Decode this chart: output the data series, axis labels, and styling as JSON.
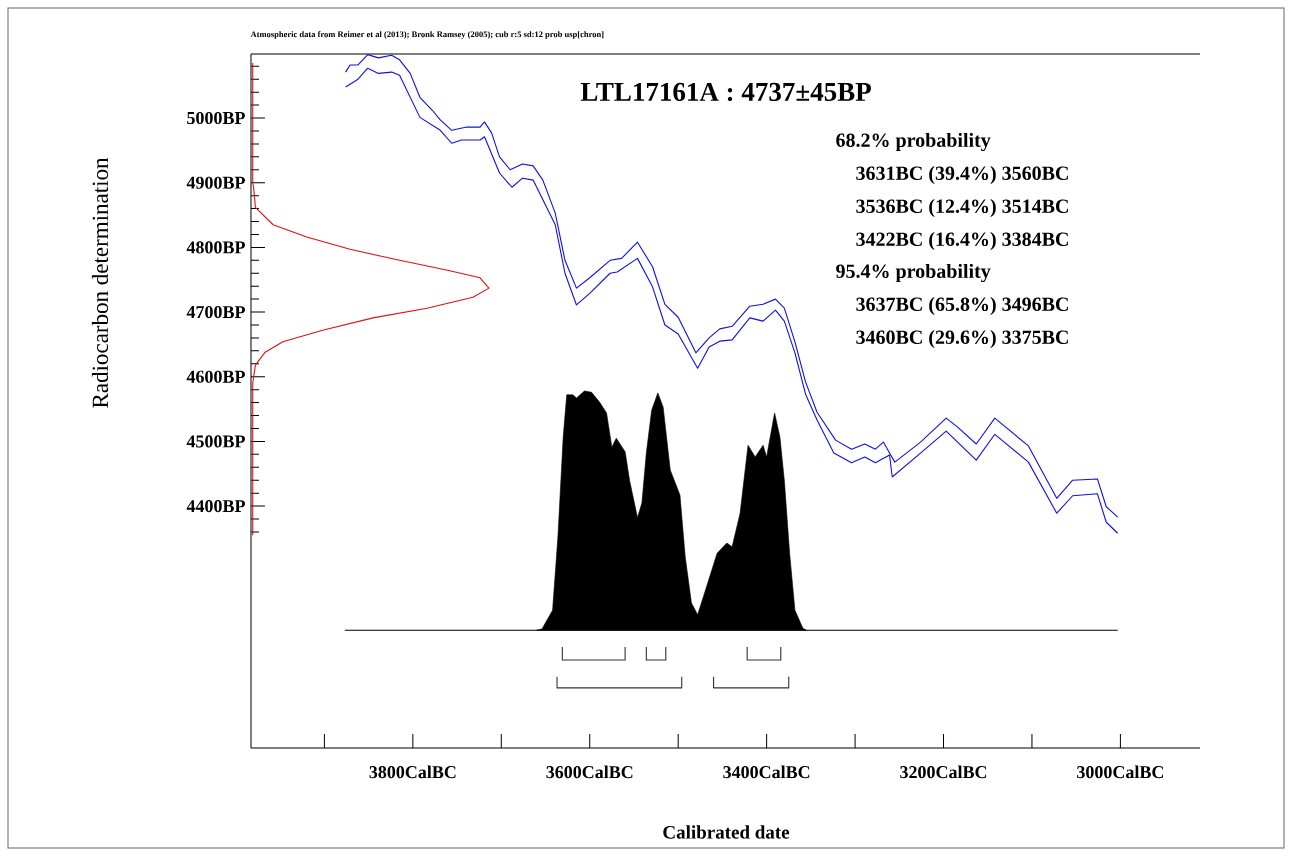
{
  "chart_data": {
    "type": "line",
    "title": "LTL17161A : 4737±45BP",
    "xlabel": "Calibrated date",
    "ylabel": "Radiocarbon determination",
    "annotations": [
      "Atmospheric data from Reimer et al (2013); Bronk Ramsey (2005); cub r:5 sd:12 prob usp[chron]",
      "68.2% probability",
      "3631BC (39.4%) 3560BC",
      "3536BC (12.4%) 3514BC",
      "3422BC (16.4%) 3384BC",
      "95.4% probability",
      "3637BC (65.8%) 3496BC",
      "3460BC (29.6%) 3375BC"
    ],
    "xlim": [
      3983,
      2910
    ],
    "ylim": [
      4026,
      5099
    ],
    "xticks": [
      {
        "value": 3900,
        "label": null
      },
      {
        "value": 3800,
        "label": "3800CalBC"
      },
      {
        "value": 3700,
        "label": null
      },
      {
        "value": 3600,
        "label": "3600CalBC"
      },
      {
        "value": 3500,
        "label": null
      },
      {
        "value": 3400,
        "label": "3400CalBC"
      },
      {
        "value": 3300,
        "label": null
      },
      {
        "value": 3200,
        "label": "3200CalBC"
      },
      {
        "value": 3100,
        "label": null
      },
      {
        "value": 3000,
        "label": "3000CalBC"
      }
    ],
    "yticks": [
      {
        "value": 4360,
        "label": null
      },
      {
        "value": 4380,
        "label": null
      },
      {
        "value": 4400,
        "label": "4400BP"
      },
      {
        "value": 4420,
        "label": null
      },
      {
        "value": 4440,
        "label": null
      },
      {
        "value": 4460,
        "label": null
      },
      {
        "value": 4480,
        "label": null
      },
      {
        "value": 4500,
        "label": "4500BP"
      },
      {
        "value": 4520,
        "label": null
      },
      {
        "value": 4540,
        "label": null
      },
      {
        "value": 4560,
        "label": null
      },
      {
        "value": 4580,
        "label": null
      },
      {
        "value": 4600,
        "label": "4600BP"
      },
      {
        "value": 4620,
        "label": null
      },
      {
        "value": 4640,
        "label": null
      },
      {
        "value": 4660,
        "label": null
      },
      {
        "value": 4680,
        "label": null
      },
      {
        "value": 4700,
        "label": "4700BP"
      },
      {
        "value": 4720,
        "label": null
      },
      {
        "value": 4740,
        "label": null
      },
      {
        "value": 4760,
        "label": null
      },
      {
        "value": 4780,
        "label": null
      },
      {
        "value": 4800,
        "label": "4800BP"
      },
      {
        "value": 4820,
        "label": null
      },
      {
        "value": 4840,
        "label": null
      },
      {
        "value": 4860,
        "label": null
      },
      {
        "value": 4880,
        "label": null
      },
      {
        "value": 4900,
        "label": "4900BP"
      },
      {
        "value": 4920,
        "label": null
      },
      {
        "value": 4940,
        "label": null
      },
      {
        "value": 4960,
        "label": null
      },
      {
        "value": 4980,
        "label": null
      },
      {
        "value": 5000,
        "label": "5000BP"
      },
      {
        "value": 5020,
        "label": null
      },
      {
        "value": 5040,
        "label": null
      },
      {
        "value": 5060,
        "label": null
      },
      {
        "value": 5080,
        "label": null
      }
    ],
    "series": [
      {
        "color": "#1010e0",
        "x": [
          3876,
          3871,
          3862,
          3851,
          3839,
          3824,
          3815,
          3803,
          3792,
          3778,
          3769,
          3756,
          3739,
          3724,
          3719,
          3711,
          3702,
          3690,
          3676,
          3664,
          3653,
          3639,
          3628,
          3615,
          3600,
          3577,
          3564,
          3546,
          3529,
          3515,
          3500,
          3480,
          3465,
          3453,
          3439,
          3419,
          3404,
          3390,
          3380,
          3368,
          3356,
          3343,
          3322,
          3304,
          3289,
          3277,
          3268,
          3261,
          3255,
          3226,
          3197,
          3184,
          3163,
          3142,
          3104,
          3072,
          3054,
          3026,
          3016,
          3003
        ],
        "values": [
          5071,
          5082,
          5082,
          5098,
          5093,
          5097,
          5090,
          5069,
          5032,
          5012,
          4997,
          4981,
          4986,
          4986,
          4994,
          4977,
          4940,
          4920,
          4929,
          4926,
          4904,
          4853,
          4780,
          4737,
          4753,
          4780,
          4783,
          4808,
          4770,
          4712,
          4692,
          4637,
          4660,
          4674,
          4678,
          4709,
          4712,
          4720,
          4706,
          4654,
          4592,
          4545,
          4502,
          4488,
          4496,
          4488,
          4499,
          4482,
          4468,
          4499,
          4536,
          4522,
          4496,
          4536,
          4493,
          4412,
          4440,
          4442,
          4399,
          4383
        ]
      },
      {
        "color": "#1010e0",
        "x": [
          3876,
          3862,
          3851,
          3839,
          3824,
          3815,
          3792,
          3769,
          3756,
          3745,
          3724,
          3719,
          3702,
          3688,
          3676,
          3664,
          3639,
          3628,
          3615,
          3600,
          3577,
          3569,
          3546,
          3529,
          3515,
          3500,
          3478,
          3465,
          3453,
          3439,
          3419,
          3404,
          3390,
          3380,
          3368,
          3356,
          3343,
          3324,
          3304,
          3289,
          3277,
          3261,
          3258,
          3226,
          3197,
          3163,
          3142,
          3104,
          3072,
          3054,
          3026,
          3016,
          3003
        ],
        "values": [
          5048,
          5060,
          5077,
          5069,
          5071,
          5066,
          5001,
          4981,
          4961,
          4966,
          4966,
          4971,
          4915,
          4893,
          4907,
          4904,
          4835,
          4760,
          4711,
          4729,
          4760,
          4762,
          4783,
          4739,
          4680,
          4666,
          4613,
          4646,
          4655,
          4657,
          4691,
          4686,
          4703,
          4686,
          4637,
          4573,
          4533,
          4482,
          4467,
          4476,
          4467,
          4479,
          4445,
          4482,
          4516,
          4471,
          4511,
          4468,
          4389,
          4416,
          4419,
          4375,
          4358
        ]
      },
      {
        "color": "#dd1111",
        "x": [
          3981,
          3981,
          3980,
          3978,
          3958,
          3920,
          3871,
          3815,
          3762,
          3724,
          3714,
          3732,
          3784,
          3845,
          3902,
          3947,
          3967,
          3978,
          3980,
          3981,
          3981
        ],
        "values": [
          5085,
          4900,
          4892,
          4862,
          4835,
          4816,
          4797,
          4780,
          4765,
          4753,
          4737,
          4723,
          4706,
          4691,
          4672,
          4654,
          4638,
          4618,
          4600,
          4590,
          4355
        ]
      },
      {
        "color": "#000000",
        "x": [
          3877,
          3003
        ],
        "values": [
          4208,
          4208
        ]
      },
      {
        "type": "area",
        "color": "#000000",
        "x": [
          3660,
          3654,
          3642,
          3636,
          3630,
          3626,
          3619,
          3615,
          3606,
          3598,
          3589,
          3581,
          3575,
          3570,
          3560,
          3555,
          3546,
          3541,
          3536,
          3530,
          3523,
          3517,
          3509,
          3498,
          3492,
          3485,
          3478,
          3468,
          3456,
          3445,
          3439,
          3430,
          3421,
          3413,
          3404,
          3400,
          3391,
          3385,
          3380,
          3374,
          3368,
          3359,
          3355
        ],
        "values": [
          4208,
          4210,
          4239,
          4352,
          4507,
          4572,
          4572,
          4567,
          4578,
          4576,
          4561,
          4544,
          4491,
          4505,
          4484,
          4440,
          4382,
          4405,
          4482,
          4548,
          4575,
          4553,
          4456,
          4417,
          4321,
          4250,
          4232,
          4275,
          4327,
          4343,
          4337,
          4389,
          4494,
          4476,
          4494,
          4476,
          4544,
          4507,
          4440,
          4327,
          4239,
          4211,
          4208
        ]
      },
      {
        "color": "#333333",
        "x": [
          3631,
          3631,
          3560,
          3560
        ],
        "values": [
          4182,
          4162,
          4162,
          4182
        ]
      },
      {
        "color": "#333333",
        "x": [
          3536,
          3536,
          3514,
          3514
        ],
        "values": [
          4182,
          4162,
          4162,
          4182
        ]
      },
      {
        "color": "#333333",
        "x": [
          3422,
          3422,
          3384,
          3384
        ],
        "values": [
          4182,
          4162,
          4162,
          4182
        ]
      },
      {
        "color": "#333333",
        "x": [
          3637,
          3637,
          3496,
          3496
        ],
        "values": [
          4136,
          4119,
          4119,
          4136
        ]
      },
      {
        "color": "#333333",
        "x": [
          3460,
          3460,
          3375,
          3375
        ],
        "values": [
          4136,
          4119,
          4119,
          4136
        ]
      }
    ]
  }
}
